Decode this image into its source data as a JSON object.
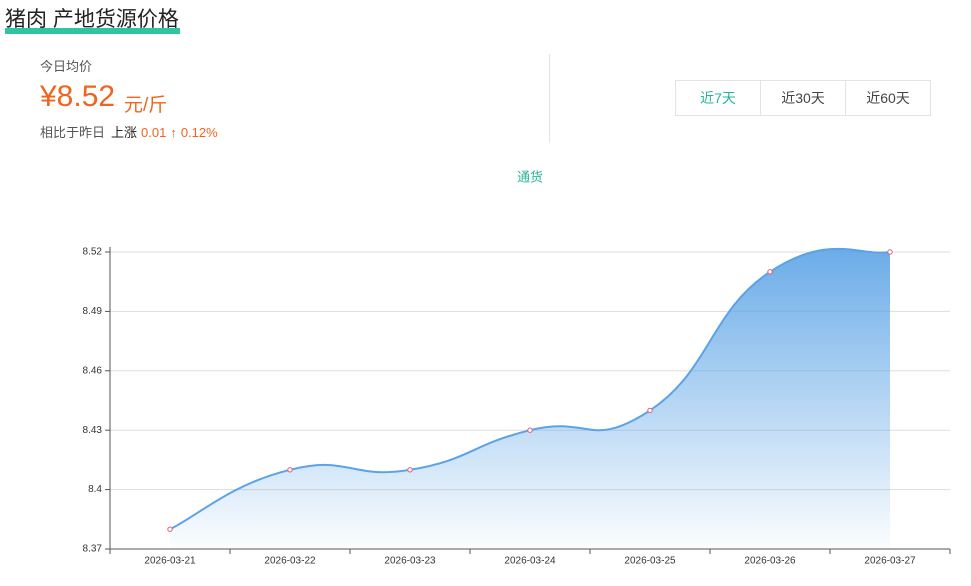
{
  "header": {
    "title": "猪肉 产地货源价格"
  },
  "summary": {
    "label": "今日均价",
    "price": "¥8.52",
    "unit": "元/斤",
    "compare_label": "相比于昨日",
    "direction": "上涨",
    "change": "0.01",
    "arrow": "↑",
    "percent": "0.12%"
  },
  "range_tabs": [
    "近7天",
    "近30天",
    "近60天"
  ],
  "chart_data": {
    "type": "line",
    "x": [
      "2026-03-21",
      "2026-03-22",
      "2026-03-23",
      "2026-03-24",
      "2026-03-25",
      "2026-03-26",
      "2026-03-27"
    ],
    "series": [
      {
        "name": "通货",
        "color": "#5ba3e6",
        "values": [
          8.38,
          8.41,
          8.41,
          8.43,
          8.44,
          8.51,
          8.52
        ]
      }
    ],
    "ylim": [
      8.37,
      8.52
    ],
    "yticks": [
      8.37,
      8.4,
      8.43,
      8.46,
      8.49,
      8.52
    ],
    "grid": true
  }
}
